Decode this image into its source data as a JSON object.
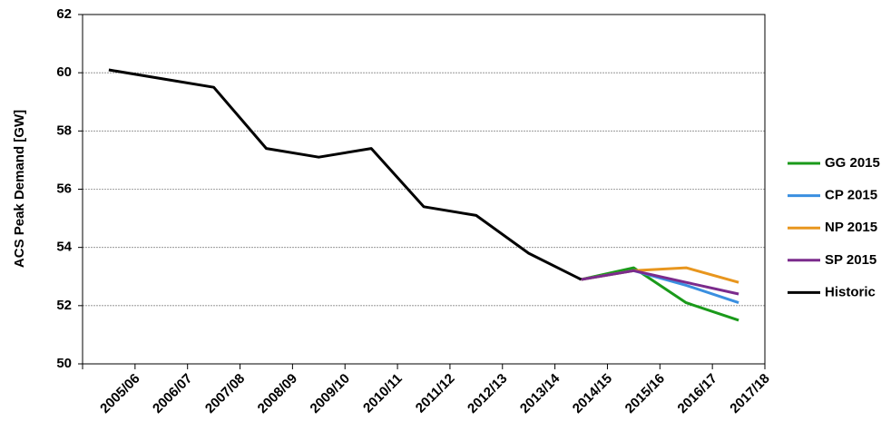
{
  "chart_data": {
    "type": "line",
    "y_label": "ACS Peak Demand [GW]",
    "categories": [
      "2005/06",
      "2006/07",
      "2007/08",
      "2008/09",
      "2009/10",
      "2010/11",
      "2011/12",
      "2012/13",
      "2013/14",
      "2014/15",
      "2015/16",
      "2016/17",
      "2017/18"
    ],
    "series": [
      {
        "name": "GG 2015",
        "color": "#1a9a1a",
        "values": [
          null,
          null,
          null,
          null,
          null,
          null,
          null,
          null,
          null,
          52.9,
          53.3,
          52.1,
          51.5
        ]
      },
      {
        "name": "CP 2015",
        "color": "#3a8fe0",
        "values": [
          null,
          null,
          null,
          null,
          null,
          null,
          null,
          null,
          null,
          52.9,
          53.2,
          52.7,
          52.1
        ]
      },
      {
        "name": "NP 2015",
        "color": "#e8961e",
        "values": [
          null,
          null,
          null,
          null,
          null,
          null,
          null,
          null,
          null,
          52.9,
          53.2,
          53.3,
          52.8
        ]
      },
      {
        "name": "SP 2015",
        "color": "#7b2b8c",
        "values": [
          null,
          null,
          null,
          null,
          null,
          null,
          null,
          null,
          null,
          52.9,
          53.2,
          52.8,
          52.4
        ]
      },
      {
        "name": "Historic",
        "color": "#000000",
        "values": [
          60.1,
          59.8,
          59.5,
          57.4,
          57.1,
          57.4,
          55.4,
          55.1,
          53.8,
          52.9,
          null,
          null,
          null
        ]
      }
    ],
    "ylim": [
      50,
      62
    ],
    "yticks": [
      50,
      52,
      54,
      56,
      58,
      60,
      62
    ],
    "grid": true,
    "legend": "right"
  }
}
